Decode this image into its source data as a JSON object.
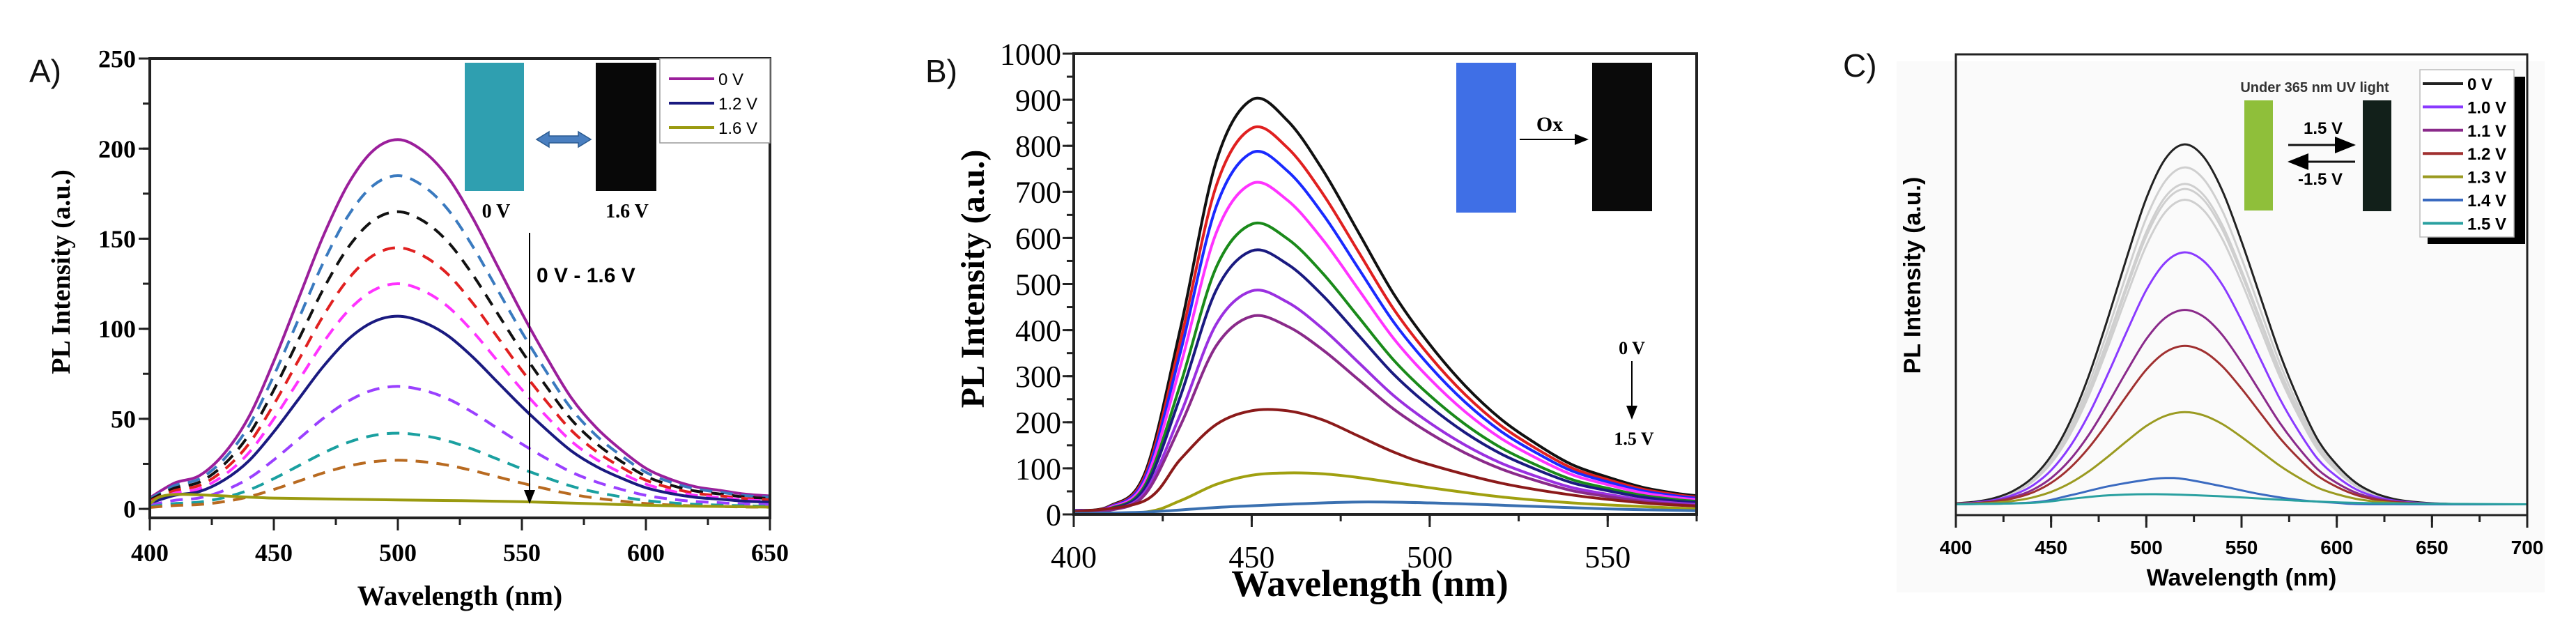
{
  "chart_data": [
    {
      "panel_label": "A)",
      "type": "line",
      "title": "",
      "xlabel": "Wavelength (nm)",
      "ylabel": "PL Intensity (a.u.)",
      "xlim": [
        400,
        650
      ],
      "ylim": [
        -5,
        250
      ],
      "xticks": [
        400,
        450,
        500,
        550,
        600,
        650
      ],
      "yticks": [
        0,
        50,
        100,
        150,
        200,
        250
      ],
      "x_minor_step": 25,
      "y_minor_step": 25,
      "grid": false,
      "profile": {
        "x": [
          400,
          410,
          420,
          430,
          440,
          450,
          460,
          470,
          480,
          490,
          500,
          510,
          520,
          530,
          540,
          550,
          560,
          570,
          580,
          590,
          600,
          610,
          620,
          630,
          640,
          650
        ],
        "y": [
          0.03,
          0.07,
          0.09,
          0.15,
          0.25,
          0.4,
          0.57,
          0.74,
          0.88,
          0.97,
          1.0,
          0.97,
          0.9,
          0.79,
          0.66,
          0.53,
          0.41,
          0.3,
          0.22,
          0.16,
          0.11,
          0.08,
          0.06,
          0.05,
          0.04,
          0.035
        ]
      },
      "series": [
        {
          "name": "0 V",
          "peak": 205,
          "color": "#9b1f9b",
          "dashed": false
        },
        {
          "name": "",
          "peak": 185,
          "color": "#3a7abf",
          "dashed": true
        },
        {
          "name": "",
          "peak": 165,
          "color": "#111111",
          "dashed": true
        },
        {
          "name": "",
          "peak": 145,
          "color": "#e02020",
          "dashed": true
        },
        {
          "name": "",
          "peak": 125,
          "color": "#ff33ff",
          "dashed": true
        },
        {
          "name": "1.2 V",
          "peak": 107,
          "color": "#1a1a80",
          "dashed": false
        },
        {
          "name": "",
          "peak": 68,
          "color": "#9a40ff",
          "dashed": true
        },
        {
          "name": "",
          "peak": 42,
          "color": "#1aa0a0",
          "dashed": true
        },
        {
          "name": "",
          "peak": 27,
          "color": "#b86a20",
          "dashed": true
        },
        {
          "name": "1.6 V",
          "color": "#9a9a10",
          "dashed": false,
          "x": [
            400,
            410,
            450,
            500,
            550,
            600,
            650
          ],
          "y": [
            3,
            8,
            6,
            5,
            4,
            2,
            1
          ]
        }
      ],
      "legend": {
        "position": "top-right",
        "entries": [
          "0 V",
          "1.2 V",
          "1.6 V"
        ],
        "colors": [
          "#9b1f9b",
          "#1a1a80",
          "#9a9a10"
        ]
      },
      "inset": {
        "left_caption": "0 V",
        "right_caption": "1.6 V",
        "left_color": "#2f9fb0",
        "right_color": "#080808"
      },
      "annotation": "0 V - 1.6 V"
    },
    {
      "panel_label": "B)",
      "type": "line",
      "title": "",
      "xlabel": "Wavelength (nm)",
      "ylabel": "PL Intensity (a.u.)",
      "xlim": [
        400,
        575
      ],
      "ylim": [
        0,
        1000
      ],
      "xticks": [
        400,
        450,
        500,
        550
      ],
      "yticks": [
        0,
        100,
        200,
        300,
        400,
        500,
        600,
        700,
        800,
        900,
        1000
      ],
      "x_minor_step": 25,
      "y_minor_step": 50,
      "grid": false,
      "profile": {
        "x": [
          400,
          410,
          420,
          430,
          440,
          450,
          460,
          470,
          480,
          490,
          500,
          510,
          520,
          530,
          540,
          550,
          560,
          570,
          575
        ],
        "y": [
          0.01,
          0.02,
          0.1,
          0.45,
          0.85,
          1.0,
          0.95,
          0.83,
          0.68,
          0.53,
          0.41,
          0.31,
          0.23,
          0.17,
          0.12,
          0.09,
          0.065,
          0.05,
          0.045
        ]
      },
      "series": [
        {
          "name": "",
          "peak": 900,
          "color": "#111111"
        },
        {
          "name": "",
          "peak": 838,
          "color": "#e02020"
        },
        {
          "name": "",
          "peak": 785,
          "color": "#1a2aff"
        },
        {
          "name": "",
          "peak": 718,
          "color": "#ff33ff"
        },
        {
          "name": "",
          "peak": 630,
          "color": "#1a8a1a"
        },
        {
          "name": "",
          "peak": 572,
          "color": "#1a1a80"
        },
        {
          "name": "",
          "peak": 485,
          "color": "#9a30e0"
        },
        {
          "name": "",
          "peak": 430,
          "color": "#8a2a8a"
        },
        {
          "name": "",
          "color": "#8b1a1a",
          "x": [
            400,
            420,
            430,
            440,
            450,
            460,
            470,
            480,
            490,
            500,
            520,
            540,
            560,
            575
          ],
          "y": [
            5,
            30,
            120,
            195,
            225,
            225,
            205,
            170,
            135,
            108,
            68,
            42,
            25,
            18
          ]
        },
        {
          "name": "",
          "color": "#a0a010",
          "x": [
            400,
            420,
            430,
            440,
            450,
            460,
            470,
            480,
            500,
            520,
            540,
            560,
            575
          ],
          "y": [
            2,
            5,
            30,
            65,
            85,
            90,
            88,
            80,
            58,
            38,
            25,
            17,
            12
          ]
        },
        {
          "name": "",
          "color": "#3a70b0",
          "x": [
            400,
            420,
            440,
            460,
            480,
            500,
            520,
            550,
            575
          ],
          "y": [
            2,
            5,
            15,
            22,
            27,
            25,
            20,
            12,
            8
          ]
        }
      ],
      "inset": {
        "arrow_label": "Ox",
        "left_color": "#3f6fe6",
        "right_color": "#0a0a0a"
      },
      "annotation": {
        "from": "0 V",
        "to": "1.5 V"
      }
    },
    {
      "panel_label": "C)",
      "type": "line",
      "title": "",
      "xlabel": "Wavelength (nm)",
      "ylabel": "PL Intensity (a.u.)",
      "xlim": [
        400,
        700
      ],
      "ylim": [
        -0.03,
        1.25
      ],
      "xticks": [
        400,
        450,
        500,
        550,
        600,
        650,
        700
      ],
      "yticks": [],
      "x_minor_step": 25,
      "grid": false,
      "profile": {
        "x": [
          400,
          410,
          420,
          430,
          440,
          450,
          460,
          470,
          480,
          490,
          500,
          510,
          520,
          530,
          540,
          550,
          560,
          570,
          580,
          590,
          600,
          610,
          620,
          630,
          640,
          650,
          660,
          670,
          680,
          690,
          700
        ],
        "y": [
          0.003,
          0.007,
          0.017,
          0.037,
          0.073,
          0.135,
          0.23,
          0.36,
          0.52,
          0.69,
          0.85,
          0.96,
          1.0,
          0.966,
          0.87,
          0.73,
          0.575,
          0.42,
          0.29,
          0.18,
          0.11,
          0.06,
          0.031,
          0.015,
          0.007,
          0.003,
          0.001,
          0,
          0,
          0,
          0
        ]
      },
      "series": [
        {
          "name": "",
          "peak": 0.846,
          "color": "#cfcfcf"
        },
        {
          "name": "",
          "peak": 0.876,
          "color": "#cfcfcf"
        },
        {
          "name": "",
          "peak": 0.89,
          "color": "#cfcfcf"
        },
        {
          "name": "",
          "peak": 0.936,
          "color": "#cfcfcf"
        },
        {
          "name": "0 V",
          "peak": 1.0,
          "color": "#222222"
        },
        {
          "name": "1.0 V",
          "peak": 0.7,
          "color": "#8a3aff"
        },
        {
          "name": "1.1 V",
          "peak": 0.54,
          "color": "#8a2a8a"
        },
        {
          "name": "1.2 V",
          "peak": 0.44,
          "color": "#a03030"
        },
        {
          "name": "1.3 V",
          "peak": 0.256,
          "color": "#9a9a20"
        },
        {
          "name": "1.4 V",
          "color": "#3a6ac0",
          "x": [
            400,
            440,
            460,
            480,
            500,
            510,
            520,
            540,
            560,
            580,
            600,
            620,
            700
          ],
          "y": [
            0,
            0.005,
            0.025,
            0.05,
            0.068,
            0.073,
            0.07,
            0.05,
            0.028,
            0.012,
            0.004,
            0,
            0
          ]
        },
        {
          "name": "1.5 V",
          "color": "#2aa0a0",
          "x": [
            400,
            440,
            460,
            480,
            505,
            540,
            580,
            620,
            700
          ],
          "y": [
            0,
            0.004,
            0.015,
            0.025,
            0.028,
            0.022,
            0.01,
            0.003,
            0
          ]
        }
      ],
      "legend": {
        "position": "top-right",
        "entries": [
          "0 V",
          "1.0 V",
          "1.1 V",
          "1.2 V",
          "1.3 V",
          "1.4 V",
          "1.5 V"
        ],
        "colors": [
          "#222222",
          "#8a3aff",
          "#8a2a8a",
          "#a03030",
          "#9a9a20",
          "#3a6ac0",
          "#2aa0a0"
        ]
      },
      "inset": {
        "caption": "Under 365 nm UV light",
        "forward_label": "1.5 V",
        "reverse_label": "-1.5 V",
        "left_color": "#8fbf3a",
        "right_color": "#12201a"
      }
    }
  ]
}
